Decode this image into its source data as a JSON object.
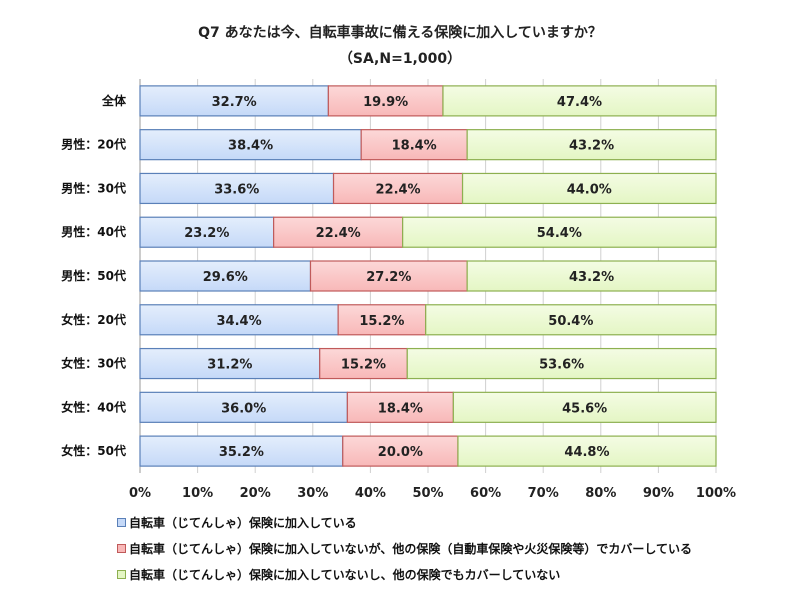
{
  "chart_data": {
    "type": "bar",
    "orientation": "horizontal",
    "stacked": true,
    "title": "Q7 あなたは今、自転車事故に備える保険に加入していますか？",
    "subtitle": "（SA,N=1,000）",
    "categories": [
      "全体",
      "男性：20代",
      "男性：30代",
      "男性：40代",
      "男性：50代",
      "女性：20代",
      "女性：30代",
      "女性：40代",
      "女性：50代"
    ],
    "series": [
      {
        "name": "自転車（じてんしゃ）保険に加入している",
        "color": "#c5d9f8",
        "values": [
          32.7,
          38.4,
          33.6,
          23.2,
          29.6,
          34.4,
          31.2,
          36.0,
          35.2
        ]
      },
      {
        "name": "自転車（じてんしゃ）保険に加入していないが、他の保険（自動車保険や火災保険等）でカバーしている",
        "color": "#f8b8b8",
        "values": [
          19.9,
          18.4,
          22.4,
          22.4,
          27.2,
          15.2,
          15.2,
          18.4,
          20.0
        ]
      },
      {
        "name": "自転車（じてんしゃ）保険に加入していないし、他の保険でもカバーしていない",
        "color": "#e4f6c4",
        "values": [
          47.4,
          43.2,
          44.0,
          54.4,
          43.2,
          50.4,
          53.6,
          45.6,
          44.8
        ]
      }
    ],
    "xlim": [
      0,
      100
    ],
    "xticks": [
      "0%",
      "10%",
      "20%",
      "30%",
      "40%",
      "50%",
      "60%",
      "70%",
      "80%",
      "90%",
      "100%"
    ],
    "grid": true,
    "legend": "bottom-left"
  }
}
